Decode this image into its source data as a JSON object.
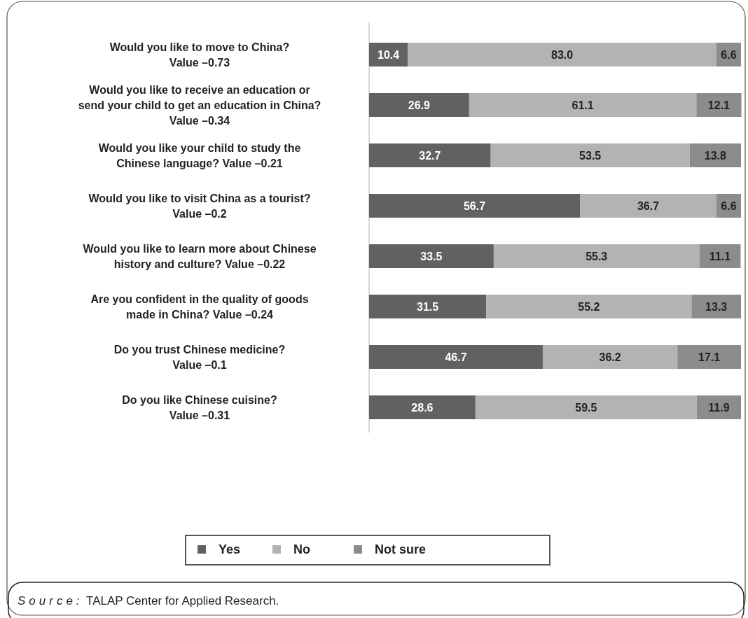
{
  "chart_data": {
    "type": "bar",
    "orientation": "horizontal",
    "stacked": true,
    "categories": [
      "Would you like to move to China?\nValue  –0.73",
      "Would you like to receive an education or\nsend your child to get an education in China?\nValue  –0.34",
      "Would you like your child to study the\nChinese language? Value  –0.21",
      "Would you like to visit China as a tourist?\nValue  –0.2",
      "Would you like to learn more about Chinese\nhistory and culture? Value  –0.22",
      "Are you confident in the quality of goods\nmade in China? Value  –0.24",
      "Do you trust Chinese medicine?\nValue  –0.1",
      "Do you like Chinese cuisine?\nValue  –0.31"
    ],
    "series": [
      {
        "name": "Yes",
        "color": "#616161",
        "values": [
          10.4,
          26.9,
          32.7,
          56.7,
          33.5,
          31.5,
          46.7,
          28.6
        ],
        "value_labels": [
          "10.4",
          "26.9",
          "32.7",
          "56.7",
          "33.5",
          "31.5",
          "46.7",
          "28.6"
        ]
      },
      {
        "name": "No",
        "color": "#b3b3b3",
        "values": [
          83.0,
          61.1,
          53.5,
          36.7,
          55.3,
          55.2,
          36.2,
          59.5
        ],
        "value_labels": [
          "83.0",
          "61.1",
          "53.5",
          "36.7",
          "55.3",
          "55.2",
          "36.2",
          "59.5"
        ]
      },
      {
        "name": "Not sure",
        "color": "#8c8c8c",
        "values": [
          6.6,
          12.1,
          13.8,
          6.6,
          11.1,
          13.3,
          17.1,
          11.9
        ],
        "value_labels": [
          "6.6",
          "12.1",
          "13.8",
          "6.6",
          "11.1",
          "13.3",
          "17.1",
          "11.9"
        ]
      }
    ],
    "xlim": [
      0,
      100
    ],
    "tick_labels": "y",
    "legend": "bottom",
    "annotations": [
      "Source: TALAP Center for Applied Research."
    ]
  }
}
